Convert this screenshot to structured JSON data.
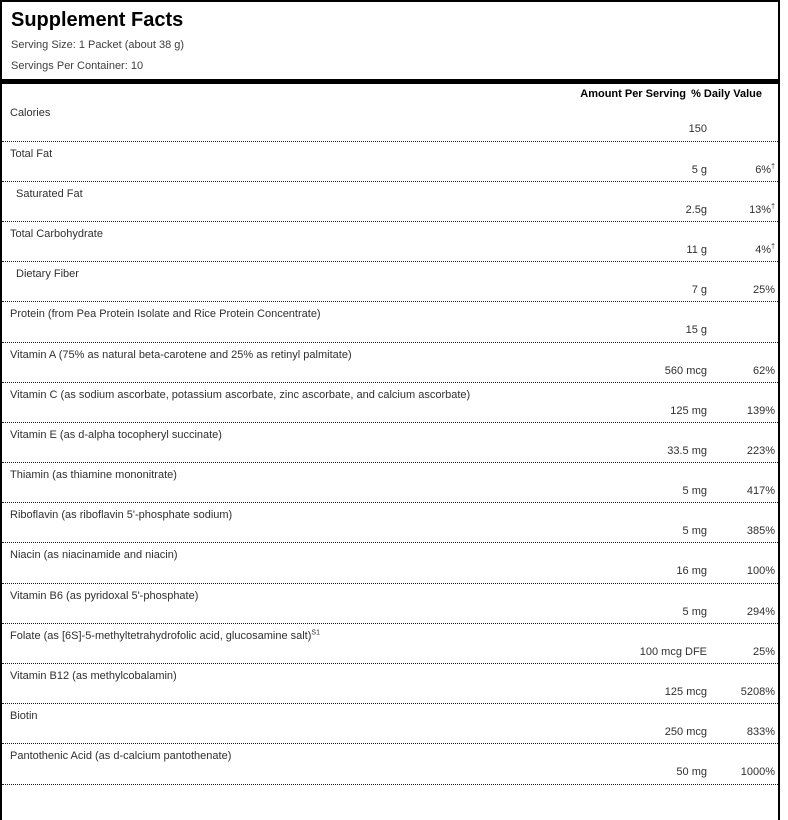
{
  "label": {
    "title": "Supplement Facts",
    "serving_size": "Serving Size: 1 Packet (about 38 g)",
    "servings_per_container": "Servings Per Container: 10",
    "column_headers": {
      "amount": "Amount Per Serving",
      "daily_value": "% Daily Value"
    },
    "colors": {
      "border": "#000000",
      "text": "#303030",
      "background": "#ffffff"
    },
    "rows": [
      {
        "label": "Calories",
        "indent": false,
        "label_sup": "",
        "amount": "150",
        "pct": "",
        "pct_sup": ""
      },
      {
        "label": "Total Fat",
        "indent": false,
        "label_sup": "",
        "amount": "5 g",
        "pct": "6%",
        "pct_sup": "†"
      },
      {
        "label": "Saturated Fat",
        "indent": true,
        "label_sup": "",
        "amount": "2.5g",
        "pct": "13%",
        "pct_sup": "†"
      },
      {
        "label": "Total Carbohydrate",
        "indent": false,
        "label_sup": "",
        "amount": "11 g",
        "pct": "4%",
        "pct_sup": "†"
      },
      {
        "label": "Dietary Fiber",
        "indent": true,
        "label_sup": "",
        "amount": "7 g",
        "pct": "25%",
        "pct_sup": ""
      },
      {
        "label": "Protein (from Pea Protein Isolate and Rice Protein Concentrate)",
        "indent": false,
        "label_sup": "",
        "amount": "15 g",
        "pct": "",
        "pct_sup": ""
      },
      {
        "label": "Vitamin A (75% as natural beta-carotene and 25% as retinyl palmitate)",
        "indent": false,
        "label_sup": "",
        "amount": "560 mcg",
        "pct": "62%",
        "pct_sup": ""
      },
      {
        "label": "Vitamin C (as sodium ascorbate, potassium ascorbate, zinc ascorbate, and calcium ascorbate)",
        "indent": false,
        "label_sup": "",
        "amount": "125 mg",
        "pct": "139%",
        "pct_sup": ""
      },
      {
        "label": "Vitamin E (as d-alpha tocopheryl succinate)",
        "indent": false,
        "label_sup": "",
        "amount": "33.5 mg",
        "pct": "223%",
        "pct_sup": ""
      },
      {
        "label": "Thiamin (as thiamine mononitrate)",
        "indent": false,
        "label_sup": "",
        "amount": "5 mg",
        "pct": "417%",
        "pct_sup": ""
      },
      {
        "label": "Riboflavin (as riboflavin 5'-phosphate sodium)",
        "indent": false,
        "label_sup": "",
        "amount": "5 mg",
        "pct": "385%",
        "pct_sup": ""
      },
      {
        "label": "Niacin (as niacinamide and niacin)",
        "indent": false,
        "label_sup": "",
        "amount": "16 mg",
        "pct": "100%",
        "pct_sup": ""
      },
      {
        "label": "Vitamin B6 (as pyridoxal 5'-phosphate)",
        "indent": false,
        "label_sup": "",
        "amount": "5 mg",
        "pct": "294%",
        "pct_sup": ""
      },
      {
        "label": "Folate (as [6S]-5-methyltetrahydrofolic acid, glucosamine salt)",
        "indent": false,
        "label_sup": "S1",
        "amount": "100 mcg DFE",
        "pct": "25%",
        "pct_sup": ""
      },
      {
        "label": "Vitamin B12 (as methylcobalamin)",
        "indent": false,
        "label_sup": "",
        "amount": "125 mcg",
        "pct": "5208%",
        "pct_sup": ""
      },
      {
        "label": "Biotin",
        "indent": false,
        "label_sup": "",
        "amount": "250 mcg",
        "pct": "833%",
        "pct_sup": ""
      },
      {
        "label": "Pantothenic Acid (as d-calcium pantothenate)",
        "indent": false,
        "label_sup": "",
        "amount": "50 mg",
        "pct": "1000%",
        "pct_sup": ""
      }
    ]
  }
}
